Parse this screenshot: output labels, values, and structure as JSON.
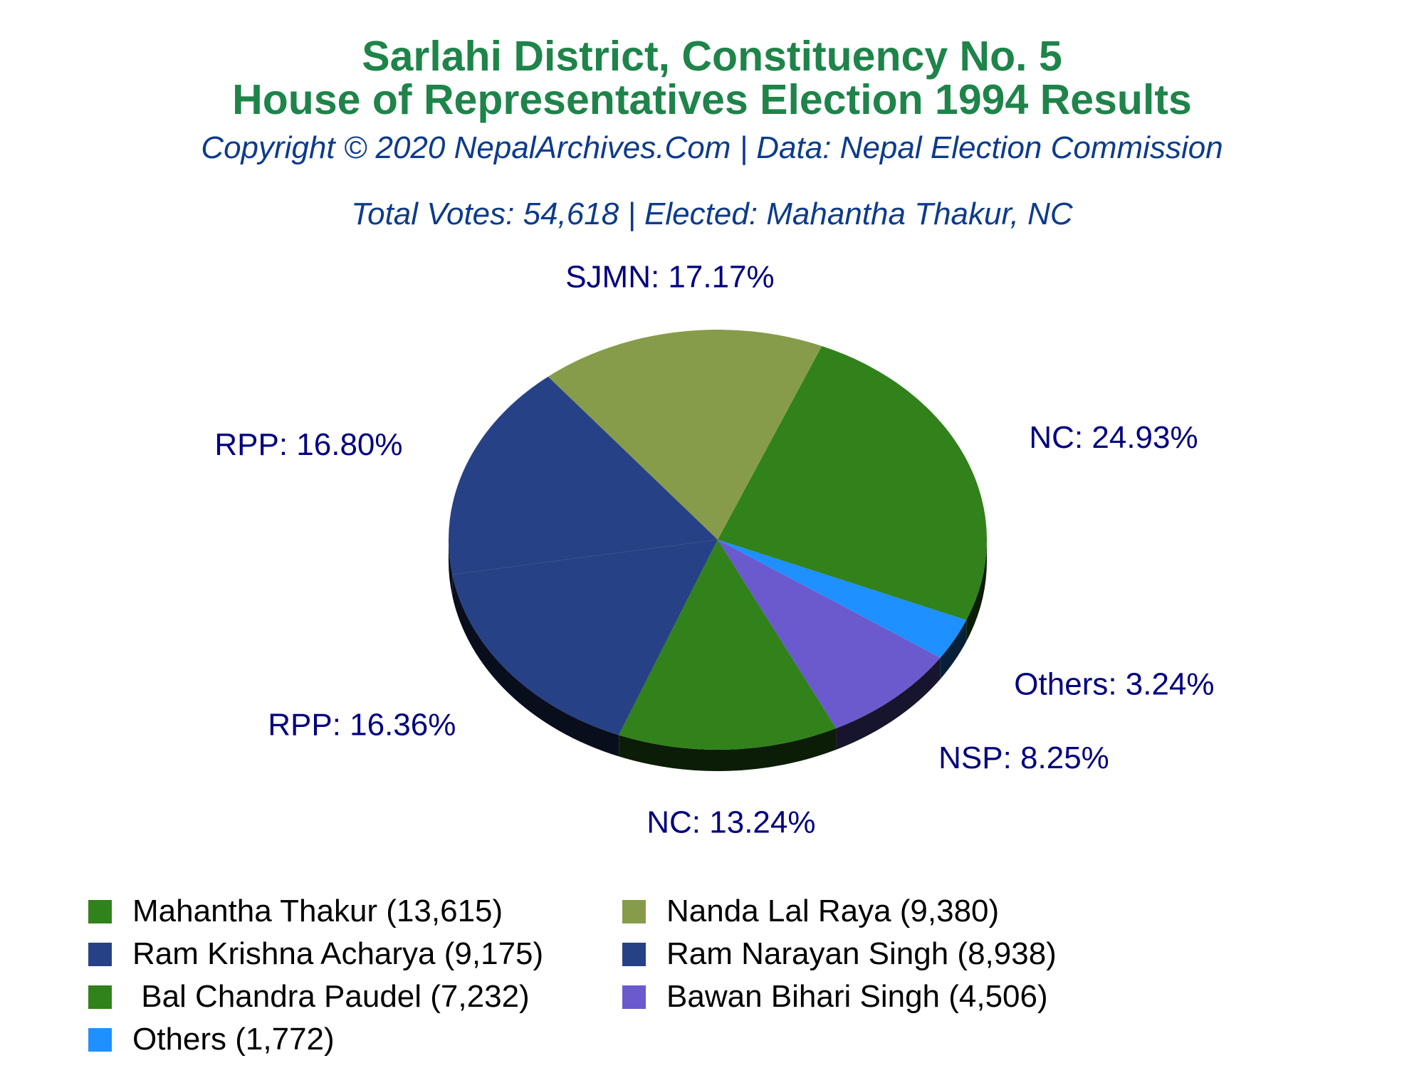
{
  "title_line1": "Sarlahi District, Constituency No. 5",
  "title_line2": "House of Representatives Election 1994 Results",
  "copyright": "Copyright © 2020 NepalArchives.Com | Data: Nepal Election Commission",
  "summary": "Total Votes: 54,618 | Elected: Mahantha Thakur, NC",
  "colors": {
    "title": "#1e8449",
    "subtitle": "#0d3b8c",
    "slice_label": "#000080"
  },
  "chart_data": {
    "type": "pie",
    "title": "Sarlahi District, Constituency No. 5 House of Representatives Election 1994 Results",
    "subtitle": "Total Votes: 54,618 | Elected: Mahantha Thakur, NC",
    "total_votes": 54618,
    "legend_position": "bottom",
    "slices": [
      {
        "candidate": "Mahantha Thakur",
        "party": "NC",
        "votes": 13615,
        "percent": 24.93,
        "label": "NC: 24.93%",
        "legend": "Mahantha Thakur (13,615)",
        "color": "#31821a"
      },
      {
        "candidate": "Nanda Lal Raya",
        "party": "SJMN",
        "votes": 9380,
        "percent": 17.17,
        "label": "SJMN: 17.17%",
        "legend": "Nanda Lal Raya (9,380)",
        "color": "#879c4a"
      },
      {
        "candidate": "Ram Krishna Acharya",
        "party": "RPP",
        "votes": 9175,
        "percent": 16.8,
        "label": "RPP: 16.80%",
        "legend": "Ram Krishna Acharya (9,175)",
        "color": "#274186"
      },
      {
        "candidate": "Ram Narayan Singh",
        "party": "RPP",
        "votes": 8938,
        "percent": 16.36,
        "label": "RPP: 16.36%",
        "legend": "Ram Narayan Singh (8,938)",
        "color": "#274186"
      },
      {
        "candidate": "Bal Chandra Paudel",
        "party": "NC",
        "votes": 7232,
        "percent": 13.24,
        "label": "NC: 13.24%",
        "legend": " Bal Chandra Paudel (7,232)",
        "color": "#31821a"
      },
      {
        "candidate": "Bawan Bihari Singh",
        "party": "NSP",
        "votes": 4506,
        "percent": 8.25,
        "label": "NSP: 8.25%",
        "legend": "Bawan Bihari Singh (4,506)",
        "color": "#6a5acd"
      },
      {
        "candidate": "Others",
        "party": "Others",
        "votes": 1772,
        "percent": 3.24,
        "label": "Others: 3.24%",
        "legend": "Others (1,772)",
        "color": "#1e90ff"
      }
    ]
  }
}
